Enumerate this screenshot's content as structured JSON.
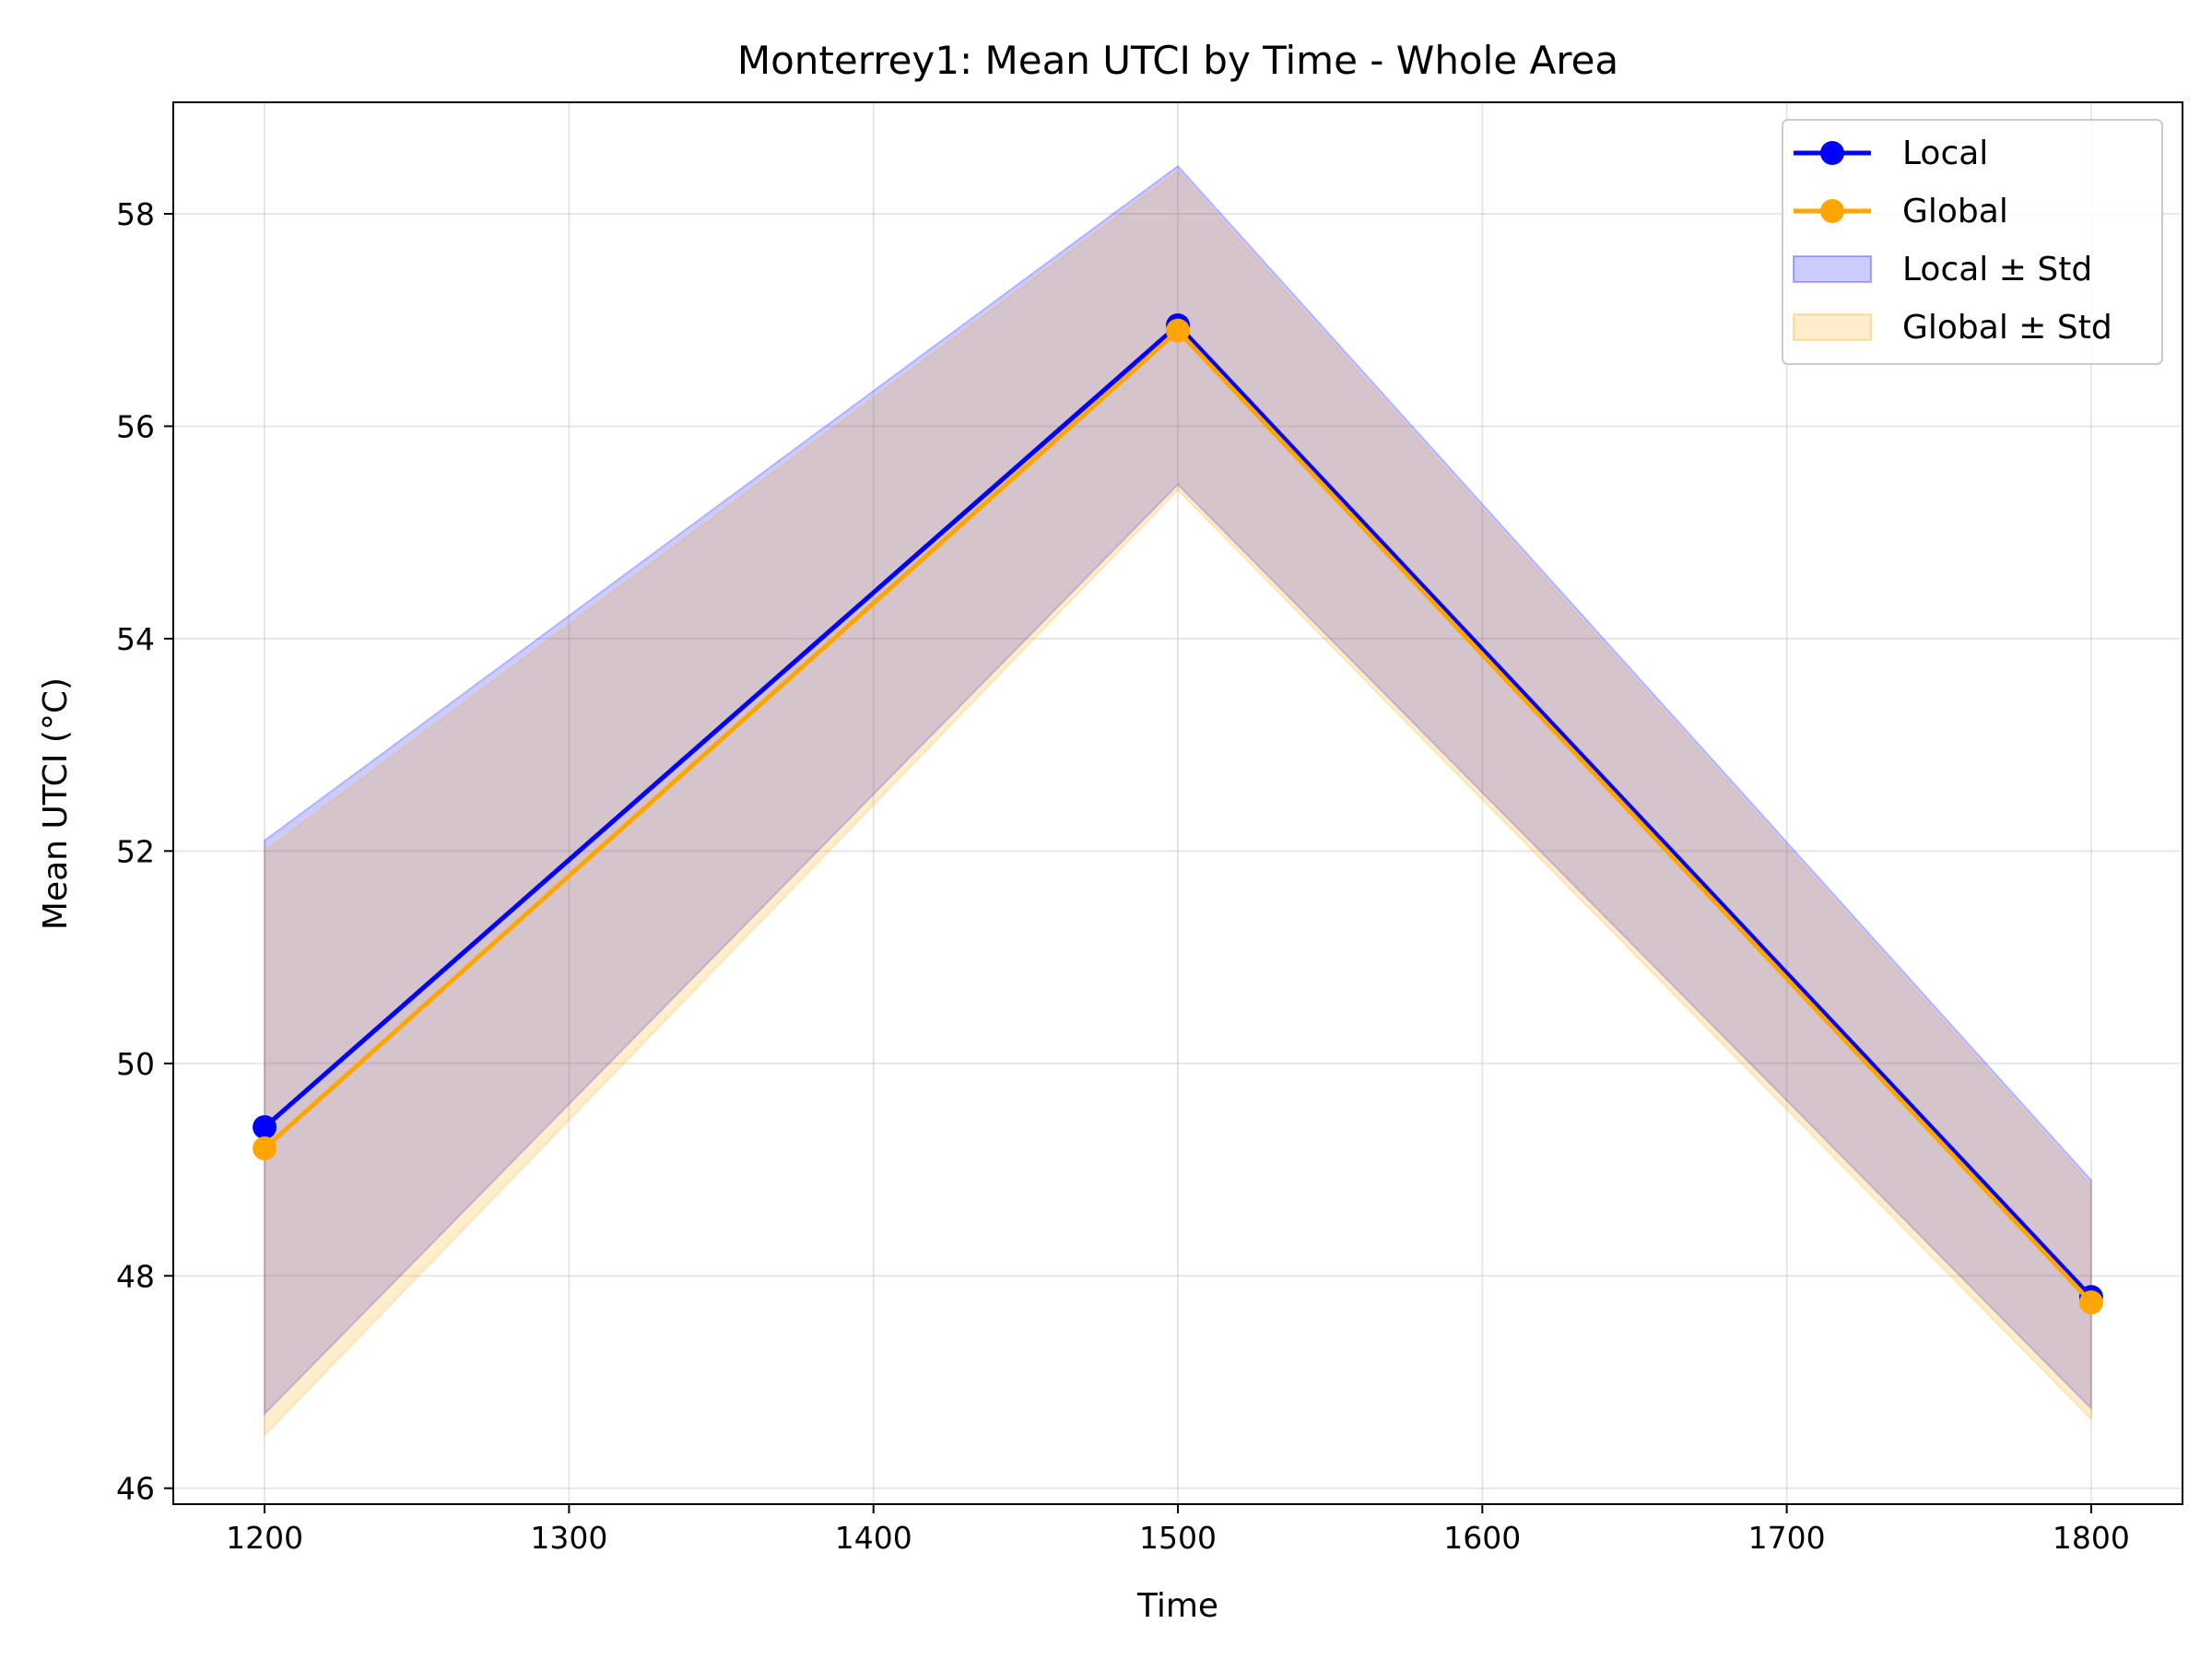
{
  "chart_data": {
    "type": "line",
    "title": "Monterrey1: Mean UTCI by Time - Whole Area",
    "xlabel": "Time",
    "ylabel": "Mean UTCI (°C)",
    "x": [
      1200,
      1500,
      1800
    ],
    "xticks": [
      "1200",
      "1300",
      "1400",
      "1500",
      "1600",
      "1700",
      "1800"
    ],
    "yticks": [
      "46",
      "48",
      "50",
      "52",
      "54",
      "56",
      "58"
    ],
    "xlim": [
      1170,
      1830
    ],
    "ylim": [
      45.85,
      59.05
    ],
    "grid": true,
    "legend_position": "top-right",
    "series": [
      {
        "name": "Local",
        "values": [
          49.4,
          56.95,
          47.8
        ],
        "std_low": [
          46.7,
          55.45,
          46.75
        ],
        "std_high": [
          52.1,
          58.45,
          48.9
        ],
        "color": "#0000ff",
        "band_color": "#0000ff",
        "band_label": "Local ± Std"
      },
      {
        "name": "Global",
        "values": [
          49.2,
          56.9,
          47.75
        ],
        "std_low": [
          46.5,
          55.4,
          46.65
        ],
        "std_high": [
          52.0,
          58.4,
          48.85
        ],
        "color": "#ffa500",
        "band_color": "#ffa500",
        "band_label": "Global ± Std"
      }
    ]
  }
}
